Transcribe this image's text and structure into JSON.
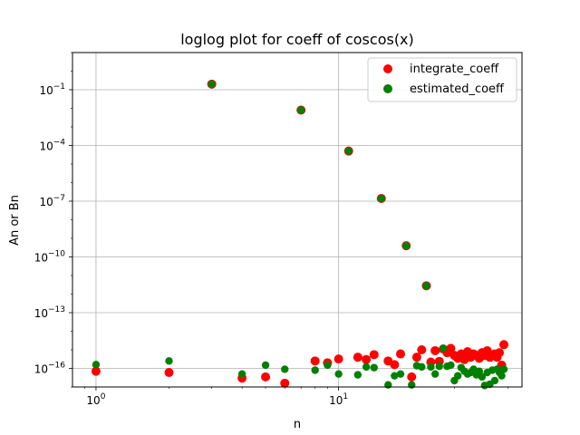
{
  "chart_data": {
    "type": "scatter",
    "title": "loglog plot for coeff of coscos(x)",
    "xlabel": "n",
    "ylabel": "An or Bn",
    "xscale": "log",
    "yscale": "log",
    "xlim": [
      0.8,
      57
    ],
    "ylim": [
      1e-17,
      10.0
    ],
    "grid": true,
    "legend_position": "top-right",
    "x_ticks": [
      {
        "value": 1,
        "mant": "10",
        "exp": "0"
      },
      {
        "value": 10,
        "mant": "10",
        "exp": "1"
      }
    ],
    "y_ticks": [
      {
        "value": 1e-16,
        "mant": "10",
        "exp": "−16"
      },
      {
        "value": 1e-13,
        "mant": "10",
        "exp": "−13"
      },
      {
        "value": 1e-10,
        "mant": "10",
        "exp": "−10"
      },
      {
        "value": 1e-07,
        "mant": "10",
        "exp": "−7"
      },
      {
        "value": 0.0001,
        "mant": "10",
        "exp": "−4"
      },
      {
        "value": 0.1,
        "mant": "10",
        "exp": "−1"
      }
    ],
    "series": [
      {
        "name": "integrate_coeff",
        "color": "#ff0000",
        "points": [
          [
            1,
            7e-17
          ],
          [
            2,
            6e-17
          ],
          [
            3,
            0.2
          ],
          [
            4,
            3e-17
          ],
          [
            5,
            3.5e-17
          ],
          [
            6,
            1.6e-17
          ],
          [
            7,
            0.008
          ],
          [
            8,
            2.5e-16
          ],
          [
            9,
            2e-16
          ],
          [
            10,
            3.2e-16
          ],
          [
            11,
            5e-05
          ],
          [
            12,
            4e-16
          ],
          [
            13,
            3e-16
          ],
          [
            14,
            5.5e-16
          ],
          [
            15,
            1.4e-07
          ],
          [
            16,
            2.5e-16
          ],
          [
            17,
            1.6e-16
          ],
          [
            18,
            6e-16
          ],
          [
            19,
            4e-10
          ],
          [
            20,
            3.5e-17
          ],
          [
            21,
            4e-16
          ],
          [
            22,
            1e-15
          ],
          [
            23,
            2.8e-12
          ],
          [
            24,
            2.2e-16
          ],
          [
            25,
            9e-16
          ],
          [
            26,
            2.4e-16
          ],
          [
            27,
            1.1e-15
          ],
          [
            28,
            7e-16
          ],
          [
            29,
            1.2e-15
          ],
          [
            30,
            5e-16
          ],
          [
            31,
            3.5e-16
          ],
          [
            32,
            6e-16
          ],
          [
            33,
            3e-16
          ],
          [
            34,
            8e-16
          ],
          [
            35,
            4e-16
          ],
          [
            36,
            6e-16
          ],
          [
            37,
            5e-16
          ],
          [
            38,
            3.5e-16
          ],
          [
            39,
            7e-16
          ],
          [
            40,
            5e-16
          ],
          [
            41,
            9e-16
          ],
          [
            42,
            4e-16
          ],
          [
            43,
            5e-16
          ],
          [
            44,
            6e-16
          ],
          [
            45,
            4e-16
          ],
          [
            46,
            7e-16
          ],
          [
            47,
            1.5e-16
          ],
          [
            48,
            1.9e-15
          ]
        ]
      },
      {
        "name": "estimated_coeff",
        "color": "#008000",
        "points": [
          [
            1,
            1.6e-16
          ],
          [
            2,
            2.5e-16
          ],
          [
            3,
            0.2
          ],
          [
            4,
            5e-17
          ],
          [
            5,
            1.5e-16
          ],
          [
            6,
            9e-17
          ],
          [
            7,
            0.008
          ],
          [
            8,
            8e-17
          ],
          [
            9,
            1.5e-16
          ],
          [
            10,
            5e-17
          ],
          [
            11,
            5e-05
          ],
          [
            12,
            4.5e-17
          ],
          [
            13,
            1.2e-16
          ],
          [
            14,
            1.1e-16
          ],
          [
            15,
            1.4e-07
          ],
          [
            16,
            1.3e-17
          ],
          [
            17,
            4e-17
          ],
          [
            18,
            5e-17
          ],
          [
            19,
            4e-10
          ],
          [
            20,
            1.3e-17
          ],
          [
            21,
            1.4e-16
          ],
          [
            22,
            1.2e-16
          ],
          [
            23,
            2.8e-12
          ],
          [
            24,
            1.2e-16
          ],
          [
            25,
            5e-17
          ],
          [
            26,
            1.3e-16
          ],
          [
            27,
            1.2e-15
          ],
          [
            28,
            1.3e-16
          ],
          [
            29,
            1.5e-16
          ],
          [
            30,
            2.2e-17
          ],
          [
            31,
            4e-17
          ],
          [
            32,
            1.1e-16
          ],
          [
            33,
            7e-17
          ],
          [
            34,
            5e-17
          ],
          [
            35,
            6e-17
          ],
          [
            36,
            9e-17
          ],
          [
            37,
            4.5e-17
          ],
          [
            38,
            7e-17
          ],
          [
            39,
            3.5e-17
          ],
          [
            40,
            1.2e-17
          ],
          [
            41,
            6e-17
          ],
          [
            42,
            1.4e-17
          ],
          [
            43,
            8e-17
          ],
          [
            44,
            2.2e-17
          ],
          [
            45,
            9e-17
          ],
          [
            46,
            6e-17
          ],
          [
            47,
            4e-17
          ],
          [
            48,
            9e-17
          ]
        ]
      }
    ]
  }
}
